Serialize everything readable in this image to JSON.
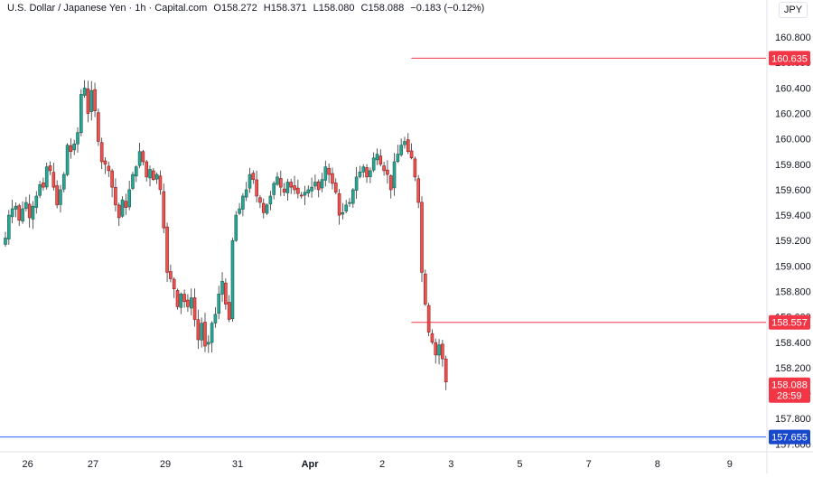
{
  "legend": {
    "symbol": "U.S. Dollar / Japanese Yen · 1h · Capital.com",
    "open_label": "O",
    "open": "158.272",
    "high_label": "H",
    "high": "158.371",
    "low_label": "L",
    "low": "158.080",
    "close_label": "C",
    "close": "158.088",
    "change": "−0.183 (−0.12%)"
  },
  "currency": "JPY",
  "colors": {
    "up": "#26a69a",
    "up_dark": "#1f5f4a",
    "down": "#ef5350",
    "down_dark": "#8b1d1d",
    "axis_text": "#131722",
    "red_label": "#f23645",
    "blue_line": "#2962ff",
    "blue_label": "#1848cc"
  },
  "chart_data": {
    "type": "candlestick",
    "title": "U.S. Dollar / Japanese Yen · 1h · Capital.com",
    "xlabel": "",
    "ylabel": "",
    "ylim": [
      157.56,
      160.95
    ],
    "yticks": [
      "160.800",
      "160.600",
      "160.400",
      "160.200",
      "160.000",
      "159.800",
      "159.600",
      "159.400",
      "159.200",
      "159.000",
      "158.800",
      "158.600",
      "158.400",
      "158.200",
      "158.000",
      "157.800",
      "157.600"
    ],
    "ytick_values": [
      160.8,
      160.6,
      160.4,
      160.2,
      160.0,
      159.8,
      159.6,
      159.4,
      159.2,
      159.0,
      158.8,
      158.6,
      158.4,
      158.2,
      158.0,
      157.8,
      157.6
    ],
    "xticks": [
      "26",
      "27",
      "29",
      "31",
      "Apr",
      "2",
      "3",
      "5",
      "7",
      "8",
      "9"
    ],
    "xtick_index": [
      2,
      21,
      42,
      63,
      84,
      105,
      125,
      145,
      165,
      185,
      206
    ],
    "xtick_bold": [
      false,
      false,
      false,
      false,
      true,
      false,
      false,
      false,
      false,
      false,
      false
    ],
    "close_path": [
      159.22,
      159.4,
      159.45,
      159.47,
      159.36,
      159.45,
      159.5,
      159.38,
      159.47,
      159.55,
      159.64,
      159.62,
      159.78,
      159.75,
      159.62,
      159.48,
      159.6,
      159.72,
      159.95,
      159.9,
      159.96,
      160.05,
      160.35,
      160.4,
      160.2,
      160.38,
      160.22,
      159.98,
      159.82,
      159.8,
      159.75,
      159.62,
      159.48,
      159.38,
      159.52,
      159.46,
      159.6,
      159.72,
      159.78,
      159.9,
      159.82,
      159.7,
      159.76,
      159.68,
      159.72,
      159.6,
      159.3,
      158.95,
      158.9,
      158.82,
      158.68,
      158.78,
      158.72,
      158.68,
      158.75,
      158.58,
      158.42,
      158.55,
      158.37,
      158.4,
      158.55,
      158.62,
      158.78,
      158.88,
      158.7,
      158.58,
      159.2,
      159.4,
      159.45,
      159.55,
      159.6,
      159.72,
      159.68,
      159.55,
      159.5,
      159.42,
      159.48,
      159.55,
      159.65,
      159.7,
      159.62,
      159.58,
      159.66,
      159.62,
      159.6,
      159.57,
      159.55,
      159.58,
      159.6,
      159.62,
      159.66,
      159.6,
      159.68,
      159.78,
      159.72,
      159.65,
      159.58,
      159.4,
      159.42,
      159.48,
      159.5,
      159.6,
      159.7,
      159.74,
      159.78,
      159.7,
      159.75,
      159.85,
      159.88,
      159.8,
      159.75,
      159.72,
      159.6,
      159.82,
      159.88,
      159.95,
      159.98,
      159.9,
      159.85,
      159.7,
      159.5,
      158.95,
      158.7,
      158.48,
      158.4,
      158.3,
      158.38,
      158.27,
      158.09
    ],
    "close_path_end": 158.088,
    "levels": [
      {
        "label": "160.635",
        "value": 160.635,
        "color": "#f23645",
        "line_from_index": 114,
        "line_color": "#f23645"
      },
      {
        "label": "158.557",
        "value": 158.557,
        "color": "#f23645",
        "line_from_index": 114,
        "line_color": "#f23645"
      },
      {
        "label": "157.655",
        "value": 157.655,
        "color": "#1848cc",
        "line_from_index": 0,
        "line_color": "#2962ff"
      }
    ],
    "last_price": {
      "label": "158.088",
      "countdown": "28:59",
      "value": 158.088,
      "color": "#f23645"
    }
  }
}
